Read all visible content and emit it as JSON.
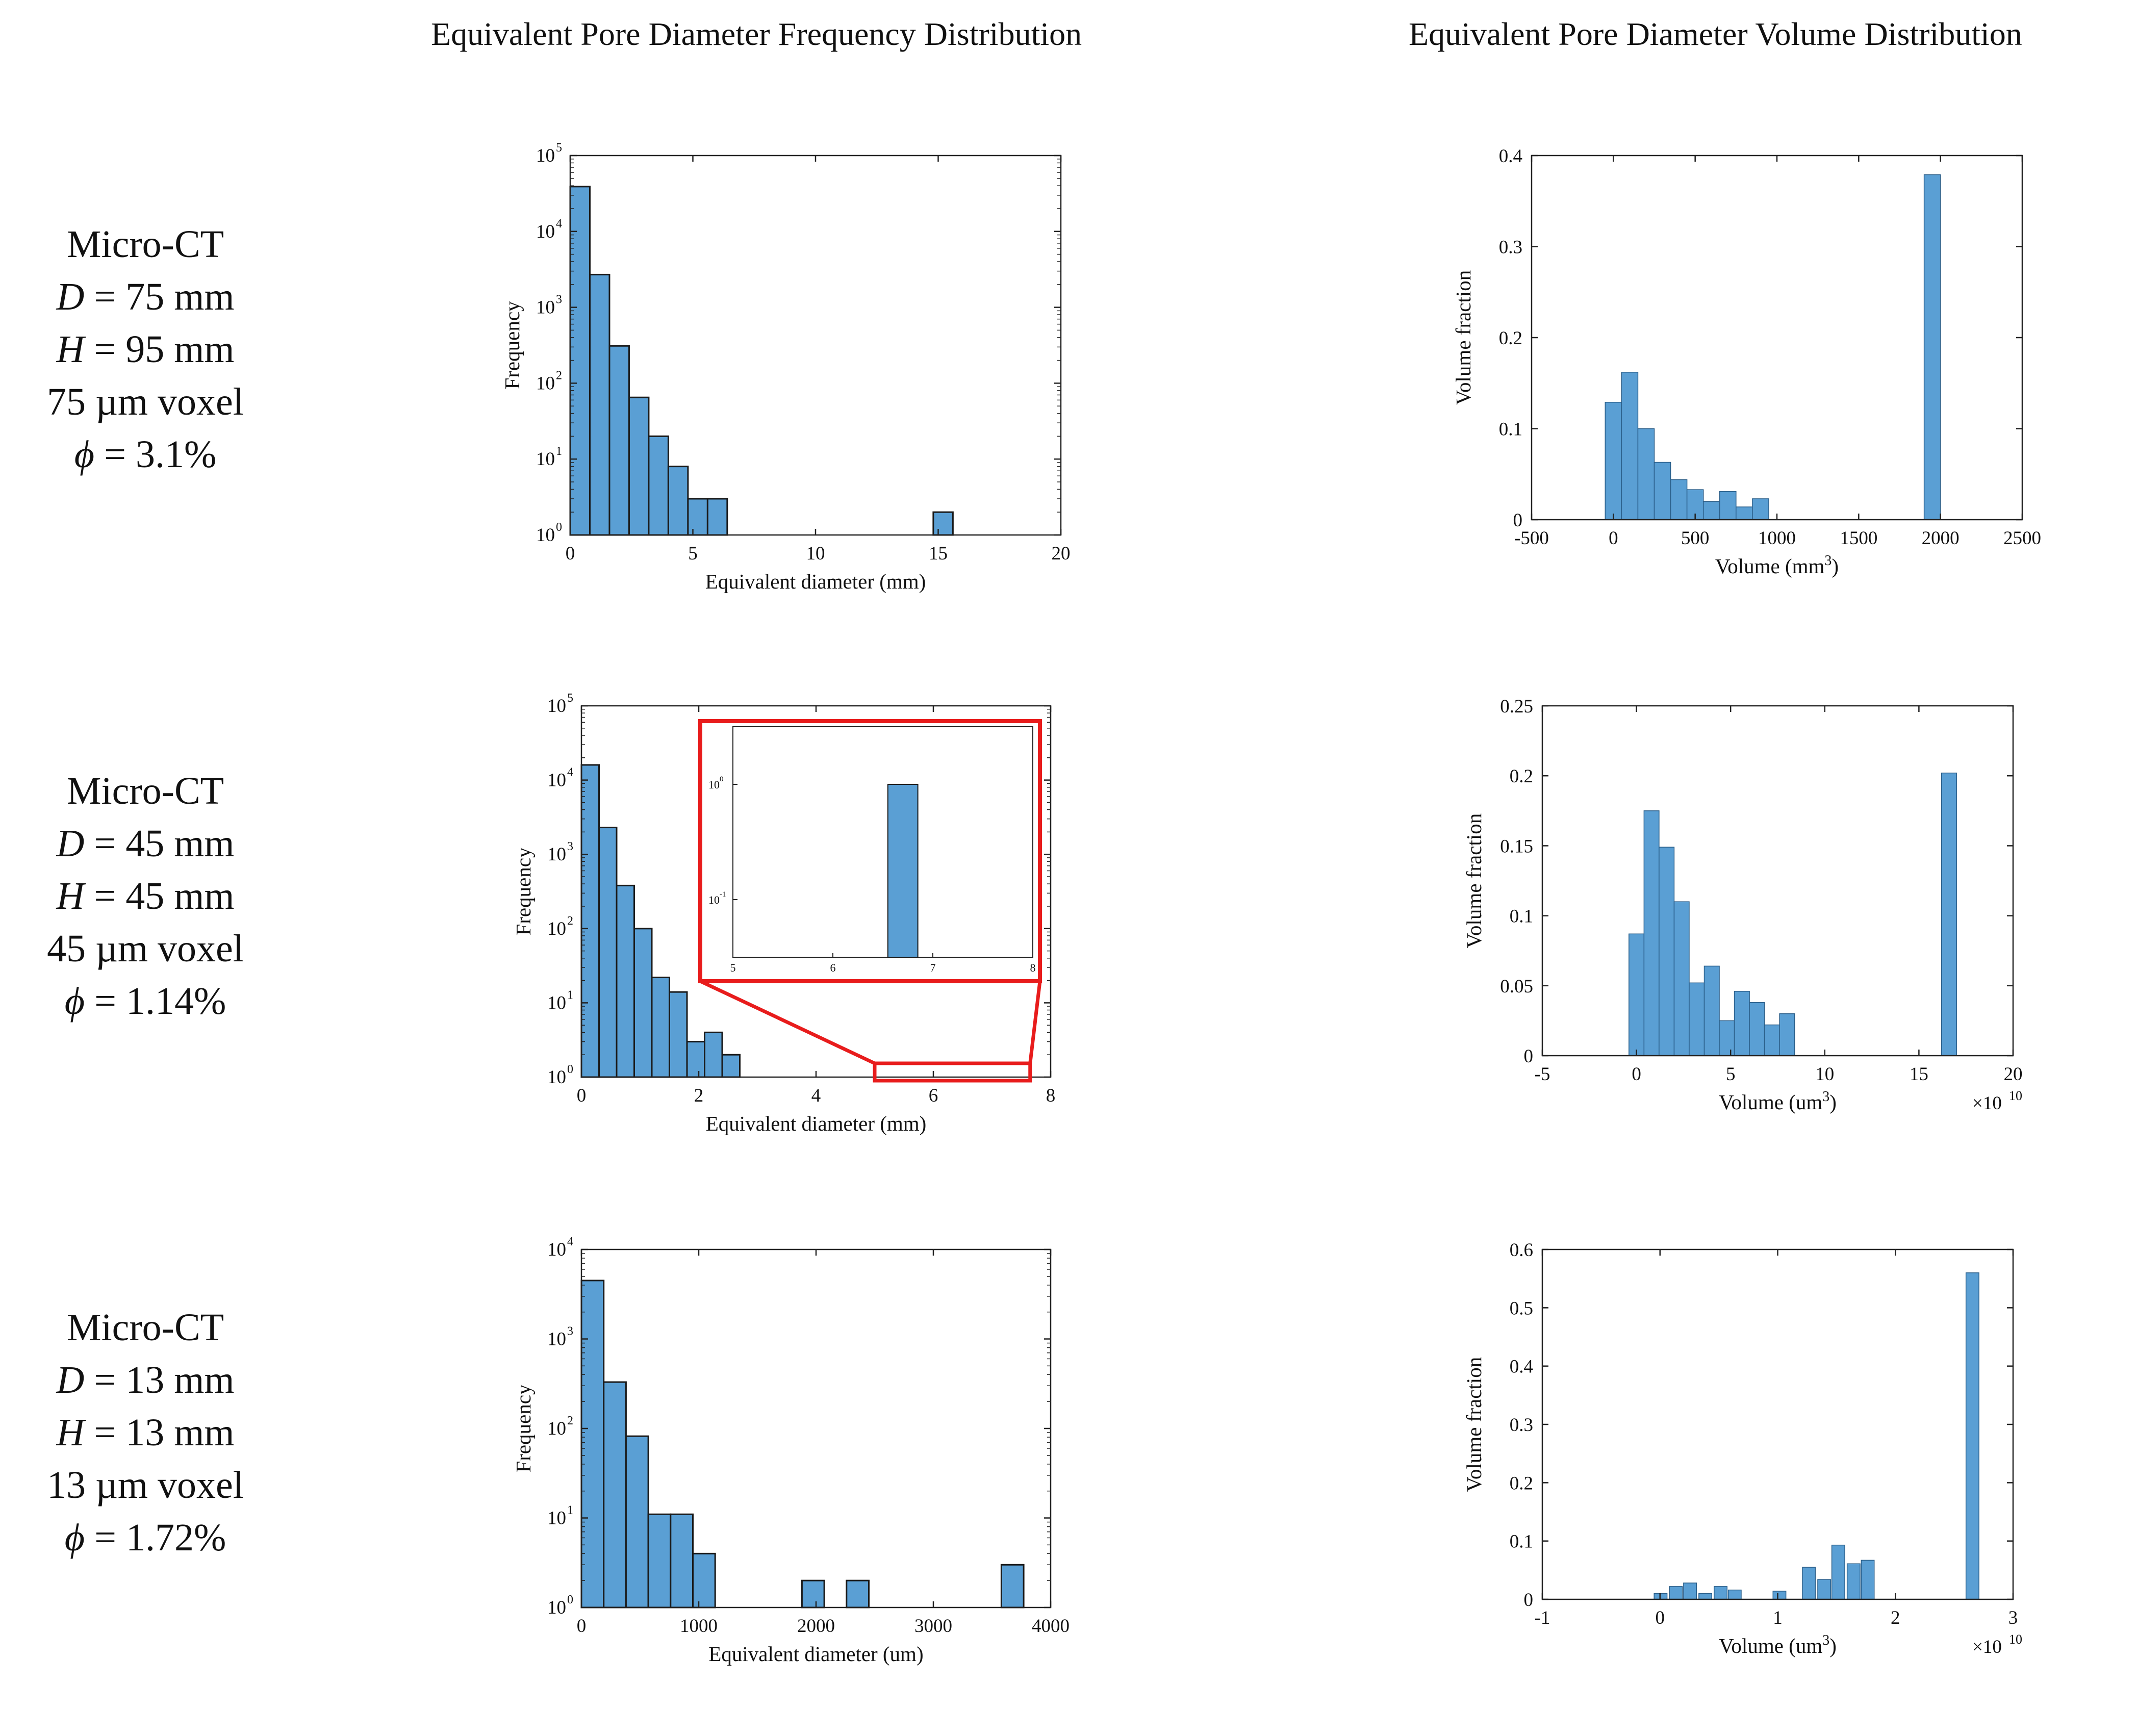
{
  "headers": {
    "frequency": "Equivalent Pore Diameter Frequency Distribution",
    "volume": "Equivalent Pore Diameter Volume Distribution"
  },
  "rows": [
    {
      "method": "Micro-CT",
      "D_sym": "D",
      "D_val": "= 75 mm",
      "H_sym": "H",
      "H_val": "= 95 mm",
      "voxel": "75 µm voxel",
      "phi_sym": "ϕ",
      "phi_val": "= 3.1%"
    },
    {
      "method": "Micro-CT",
      "D_sym": "D",
      "D_val": "= 45 mm",
      "H_sym": "H",
      "H_val": "= 45 mm",
      "voxel": "45 µm voxel",
      "phi_sym": "ϕ",
      "phi_val": "= 1.14%"
    },
    {
      "method": "Micro-CT",
      "D_sym": "D",
      "D_val": "= 13 mm",
      "H_sym": "H",
      "H_val": "= 13 mm",
      "voxel": "13 µm voxel",
      "phi_sym": "ϕ",
      "phi_val": "= 1.72%"
    }
  ],
  "colors": {
    "bar": "#5a9fd4",
    "edge": "#1a1a1a",
    "inset": "#e81c1c"
  },
  "chart_data": [
    {
      "id": "freq-75",
      "type": "bar",
      "yscale": "log",
      "xlabel": "Equivalent diameter (mm)",
      "ylabel": "Frequency",
      "xlim": [
        0,
        20
      ],
      "xticks": [
        0,
        5,
        10,
        15,
        20
      ],
      "ylog_range": [
        0,
        5
      ],
      "ylog_ticks": [
        0,
        1,
        2,
        3,
        4,
        5
      ],
      "ylog_base": 10,
      "bin_width": 0.8,
      "bar_edges": true,
      "bars": [
        [
          0,
          39000
        ],
        [
          0.8,
          2700
        ],
        [
          1.6,
          310
        ],
        [
          2.4,
          65
        ],
        [
          3.2,
          20
        ],
        [
          4.0,
          8
        ],
        [
          4.8,
          3
        ],
        [
          5.6,
          3
        ],
        [
          14.8,
          2
        ]
      ]
    },
    {
      "id": "vol-75",
      "type": "bar",
      "yscale": "linear",
      "xlabel": "Volume (mm",
      "xlabel_sup": "3",
      "xlabel_end": ")",
      "ylabel": "Volume fraction",
      "xlim": [
        -500,
        2500
      ],
      "xticks": [
        -500,
        0,
        500,
        1000,
        1500,
        2000,
        2500
      ],
      "ylim": [
        0,
        0.4
      ],
      "yticks": [
        0,
        0.1,
        0.2,
        0.3,
        0.4
      ],
      "bin_width": 100,
      "bar_edges": false,
      "bars": [
        [
          -50,
          0.129
        ],
        [
          50,
          0.162
        ],
        [
          150,
          0.1
        ],
        [
          250,
          0.063
        ],
        [
          350,
          0.044
        ],
        [
          450,
          0.033
        ],
        [
          550,
          0.02
        ],
        [
          650,
          0.031
        ],
        [
          750,
          0.014
        ],
        [
          850,
          0.023
        ],
        [
          1900,
          0.379
        ]
      ]
    },
    {
      "id": "freq-45",
      "type": "bar",
      "yscale": "log",
      "xlabel": "Equivalent diameter (mm)",
      "ylabel": "Frequency",
      "xlim": [
        0,
        8
      ],
      "xticks": [
        0,
        2,
        4,
        6,
        8
      ],
      "ylog_range": [
        0,
        5
      ],
      "ylog_ticks": [
        0,
        1,
        2,
        3,
        4,
        5
      ],
      "ylog_base": 10,
      "bin_width": 0.3,
      "bar_edges": true,
      "bars": [
        [
          0,
          16000
        ],
        [
          0.3,
          2300
        ],
        [
          0.6,
          380
        ],
        [
          0.9,
          100
        ],
        [
          1.2,
          22
        ],
        [
          1.5,
          14
        ],
        [
          1.8,
          3
        ],
        [
          2.1,
          4
        ],
        [
          2.4,
          2
        ]
      ],
      "inset": {
        "xlim": [
          5,
          8
        ],
        "xticks": [
          5,
          6,
          7,
          8
        ],
        "ylog_range": [
          -1.5,
          0.5
        ],
        "ylog_ticks": [
          -1,
          0
        ],
        "ylog_base": 10,
        "bin_width": 0.3,
        "bars": [
          [
            6.55,
            1
          ]
        ]
      }
    },
    {
      "id": "vol-45",
      "type": "bar",
      "yscale": "linear",
      "xlabel": "Volume (um",
      "xlabel_sup": "3",
      "xlabel_end": ")",
      "ylabel": "Volume fraction",
      "multiplier": "×10",
      "multiplier_exp": "10",
      "xlim": [
        -5,
        20
      ],
      "xticks": [
        -5,
        0,
        5,
        10,
        15,
        20
      ],
      "ylim": [
        0,
        0.25
      ],
      "yticks": [
        0,
        0.05,
        0.1,
        0.15,
        0.2,
        0.25
      ],
      "bin_width": 0.8,
      "bar_edges": false,
      "bars": [
        [
          -0.4,
          0.087
        ],
        [
          0.4,
          0.175
        ],
        [
          1.2,
          0.149
        ],
        [
          2.0,
          0.11
        ],
        [
          2.8,
          0.052
        ],
        [
          3.6,
          0.064
        ],
        [
          4.4,
          0.025
        ],
        [
          5.2,
          0.046
        ],
        [
          6.0,
          0.038
        ],
        [
          6.8,
          0.022
        ],
        [
          7.6,
          0.03
        ],
        [
          16.2,
          0.202
        ]
      ]
    },
    {
      "id": "freq-13",
      "type": "bar",
      "yscale": "log",
      "xlabel": "Equivalent diameter (um)",
      "ylabel": "Frequency",
      "xlim": [
        0,
        4000
      ],
      "xticks": [
        0,
        1000,
        2000,
        3000,
        4000
      ],
      "ylog_range": [
        0,
        4
      ],
      "ylog_ticks": [
        0,
        1,
        2,
        3,
        4
      ],
      "ylog_base": 10,
      "bin_width": 190,
      "bar_edges": true,
      "bars": [
        [
          0,
          4500
        ],
        [
          190,
          330
        ],
        [
          380,
          82
        ],
        [
          570,
          11
        ],
        [
          760,
          11
        ],
        [
          950,
          4
        ],
        [
          1880,
          2
        ],
        [
          2260,
          2
        ],
        [
          3580,
          3
        ]
      ]
    },
    {
      "id": "vol-13",
      "type": "bar",
      "yscale": "linear",
      "xlabel": "Volume (um",
      "xlabel_sup": "3",
      "xlabel_end": ")",
      "ylabel": "Volume fraction",
      "multiplier": "×10",
      "multiplier_exp": "10",
      "xlim": [
        -1,
        3
      ],
      "xticks": [
        -1,
        0,
        1,
        2,
        3
      ],
      "ylim": [
        0,
        0.6
      ],
      "yticks": [
        0,
        0.1,
        0.2,
        0.3,
        0.4,
        0.5,
        0.6
      ],
      "bin_width": 0.11,
      "bar_edges": false,
      "bars": [
        [
          -0.05,
          0.01
        ],
        [
          0.08,
          0.022
        ],
        [
          0.2,
          0.028
        ],
        [
          0.33,
          0.01
        ],
        [
          0.46,
          0.022
        ],
        [
          0.58,
          0.016
        ],
        [
          0.96,
          0.014
        ],
        [
          1.21,
          0.055
        ],
        [
          1.34,
          0.034
        ],
        [
          1.46,
          0.093
        ],
        [
          1.59,
          0.061
        ],
        [
          1.71,
          0.067
        ],
        [
          2.6,
          0.56
        ]
      ]
    }
  ]
}
